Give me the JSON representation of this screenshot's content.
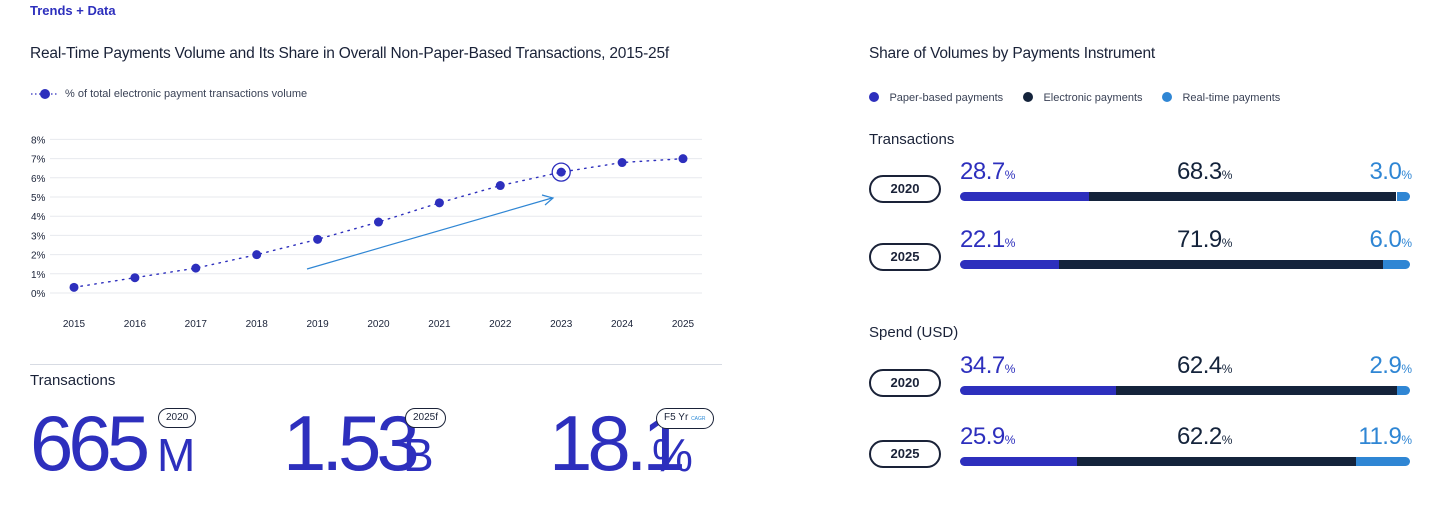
{
  "brand": "Trends + Data",
  "left": {
    "title": "Real-Time Payments Volume and Its Share in Overall Non-Paper-Based Transactions, 2015-25f",
    "legend_label": "% of total electronic payment transactions volume",
    "section_label": "Transactions",
    "stats": [
      {
        "value": "665",
        "unit": "M",
        "pill": "2020"
      },
      {
        "value": "1.53",
        "unit": "B",
        "pill": "2025f"
      },
      {
        "value": "18.1",
        "unit": "%",
        "pill": "F5 Yr",
        "pill_sub": "CAGR"
      }
    ]
  },
  "right": {
    "title": "Share of Volumes by Payments Instrument",
    "legend": [
      {
        "label": "Paper-based payments",
        "color": "#2d2fbd"
      },
      {
        "label": "Electronic payments",
        "color": "#14233b"
      },
      {
        "label": "Real-time payments",
        "color": "#2f86d4"
      }
    ],
    "groups": [
      {
        "label": "Transactions",
        "rows": [
          {
            "year": "2020",
            "paper": "28.7",
            "electronic": "68.3",
            "realtime": "3.0"
          },
          {
            "year": "2025",
            "paper": "22.1",
            "electronic": "71.9",
            "realtime": "6.0"
          }
        ]
      },
      {
        "label": "Spend (USD)",
        "rows": [
          {
            "year": "2020",
            "paper": "34.7",
            "electronic": "62.4",
            "realtime": "2.9"
          },
          {
            "year": "2025",
            "paper": "25.9",
            "electronic": "62.2",
            "realtime": "11.9"
          }
        ]
      }
    ],
    "pct_symbol": "%"
  },
  "chart_data": [
    {
      "type": "line",
      "title": "Real-Time Payments Volume and Its Share in Overall Non-Paper-Based Transactions, 2015-25f",
      "x": [
        "2015",
        "2016",
        "2017",
        "2018",
        "2019",
        "2020",
        "2021",
        "2022",
        "2023",
        "2024",
        "2025"
      ],
      "series": [
        {
          "name": "% of total electronic payment transactions volume",
          "values": [
            0.4,
            0.9,
            1.4,
            2.1,
            2.9,
            3.8,
            4.8,
            5.7,
            6.4,
            6.9,
            7.1
          ]
        }
      ],
      "yticks": [
        "0%",
        "1%",
        "2%",
        "3%",
        "4%",
        "5%",
        "6%",
        "7%",
        "8%"
      ],
      "ylim": [
        0,
        8
      ],
      "highlight": "2023"
    },
    {
      "type": "bar",
      "stacked": true,
      "title": "Share of Volumes by Payments Instrument",
      "categories": [
        "Transactions 2020",
        "Transactions 2025",
        "Spend (USD) 2020",
        "Spend (USD) 2025"
      ],
      "series": [
        {
          "name": "Paper-based payments",
          "values": [
            28.7,
            22.1,
            34.7,
            25.9
          ]
        },
        {
          "name": "Electronic payments",
          "values": [
            68.3,
            71.9,
            62.4,
            62.2
          ]
        },
        {
          "name": "Real-time payments",
          "values": [
            3.0,
            6.0,
            2.9,
            11.9
          ]
        }
      ]
    }
  ]
}
